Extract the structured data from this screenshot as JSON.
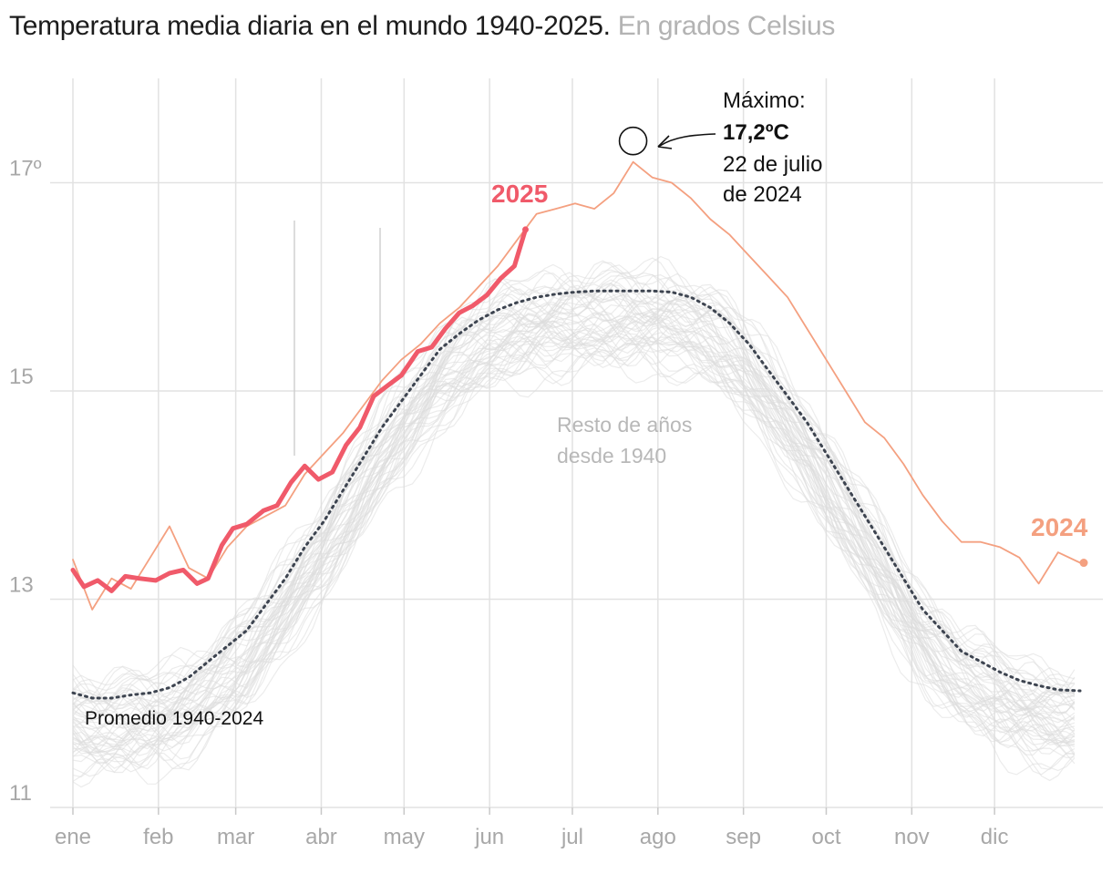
{
  "chart_data": {
    "type": "line",
    "title": "Temperatura media diaria en el mundo 1940-2025.",
    "subtitle": "En grados Celsius",
    "xlabel": "",
    "ylabel": "",
    "ylim": [
      11,
      17.9
    ],
    "x_ticks": [
      "ene",
      "feb",
      "mar",
      "abr",
      "may",
      "jun",
      "jul",
      "ago",
      "sep",
      "oct",
      "nov",
      "dic"
    ],
    "y_ticks": [
      {
        "value": 11,
        "label": "11"
      },
      {
        "value": 13,
        "label": "13"
      },
      {
        "value": 15,
        "label": "15"
      },
      {
        "value": 17,
        "label": "17º"
      }
    ],
    "grid": true,
    "series": [
      {
        "name": "2025",
        "color": "#f05a6a",
        "x": [
          1,
          5,
          10,
          15,
          20,
          25,
          31,
          36,
          41,
          46,
          50,
          55,
          59,
          64,
          70,
          75,
          80,
          85,
          90,
          95,
          100,
          105,
          110,
          115,
          120,
          126,
          131,
          136,
          141,
          146,
          151,
          156,
          161,
          165
        ],
        "values": [
          13.28,
          13.12,
          13.18,
          13.08,
          13.22,
          13.2,
          13.18,
          13.25,
          13.28,
          13.15,
          13.2,
          13.52,
          13.68,
          13.72,
          13.85,
          13.9,
          14.12,
          14.28,
          14.15,
          14.22,
          14.48,
          14.65,
          14.95,
          15.05,
          15.15,
          15.38,
          15.42,
          15.6,
          15.75,
          15.82,
          15.92,
          16.08,
          16.2,
          16.55
        ]
      },
      {
        "name": "2024",
        "color": "#f4a080",
        "x": [
          1,
          8,
          15,
          22,
          29,
          36,
          43,
          50,
          57,
          64,
          71,
          78,
          85,
          92,
          99,
          106,
          113,
          120,
          127,
          134,
          141,
          148,
          155,
          162,
          169,
          176,
          183,
          190,
          197,
          204,
          211,
          218,
          225,
          232,
          239,
          246,
          253,
          260,
          267,
          274,
          281,
          288,
          295,
          302,
          309,
          316,
          323,
          330,
          337,
          344,
          351,
          358,
          366
        ],
        "values": [
          13.38,
          12.9,
          13.2,
          13.1,
          13.4,
          13.7,
          13.3,
          13.2,
          13.5,
          13.7,
          13.8,
          13.9,
          14.2,
          14.4,
          14.6,
          14.85,
          15.1,
          15.3,
          15.45,
          15.65,
          15.8,
          16.0,
          16.2,
          16.45,
          16.7,
          16.75,
          16.8,
          16.75,
          16.9,
          17.2,
          17.05,
          17.0,
          16.85,
          16.65,
          16.5,
          16.3,
          16.1,
          15.9,
          15.6,
          15.3,
          15.0,
          14.7,
          14.55,
          14.3,
          14.0,
          13.75,
          13.55,
          13.55,
          13.5,
          13.4,
          13.15,
          13.45,
          13.35
        ]
      },
      {
        "name": "Promedio 1940-2024",
        "color": "#3d4450",
        "x": [
          1,
          8,
          15,
          22,
          29,
          36,
          43,
          50,
          57,
          64,
          71,
          78,
          85,
          92,
          99,
          106,
          113,
          120,
          127,
          134,
          141,
          148,
          155,
          162,
          169,
          176,
          183,
          190,
          197,
          204,
          211,
          218,
          225,
          232,
          239,
          246,
          253,
          260,
          267,
          274,
          281,
          288,
          295,
          302,
          309,
          316,
          323,
          330,
          337,
          344,
          351,
          358,
          366
        ],
        "values": [
          12.1,
          12.05,
          12.05,
          12.08,
          12.1,
          12.15,
          12.25,
          12.4,
          12.55,
          12.7,
          12.95,
          13.2,
          13.5,
          13.75,
          14.05,
          14.35,
          14.65,
          14.9,
          15.15,
          15.4,
          15.55,
          15.68,
          15.78,
          15.85,
          15.9,
          15.93,
          15.95,
          15.96,
          15.96,
          15.96,
          15.96,
          15.95,
          15.9,
          15.8,
          15.65,
          15.45,
          15.2,
          14.95,
          14.7,
          14.4,
          14.1,
          13.8,
          13.5,
          13.2,
          12.9,
          12.7,
          12.5,
          12.4,
          12.3,
          12.22,
          12.17,
          12.13,
          12.12
        ]
      }
    ],
    "background_label": [
      "Resto de años",
      "desde 1940"
    ],
    "annotations": {
      "max_label": "Máximo:",
      "max_value": "17,2ºC",
      "max_date_1": "22 de julio",
      "max_date_2": "de 2024",
      "label_2025": "2025",
      "label_2024": "2024",
      "label_avg": "Promedio 1940-2024"
    },
    "colors": {
      "y2025": "#f05a6a",
      "y2024": "#f4a080",
      "average": "#3d4450",
      "other_years": "#dcdcdc",
      "grid": "#e2e2e2"
    }
  }
}
